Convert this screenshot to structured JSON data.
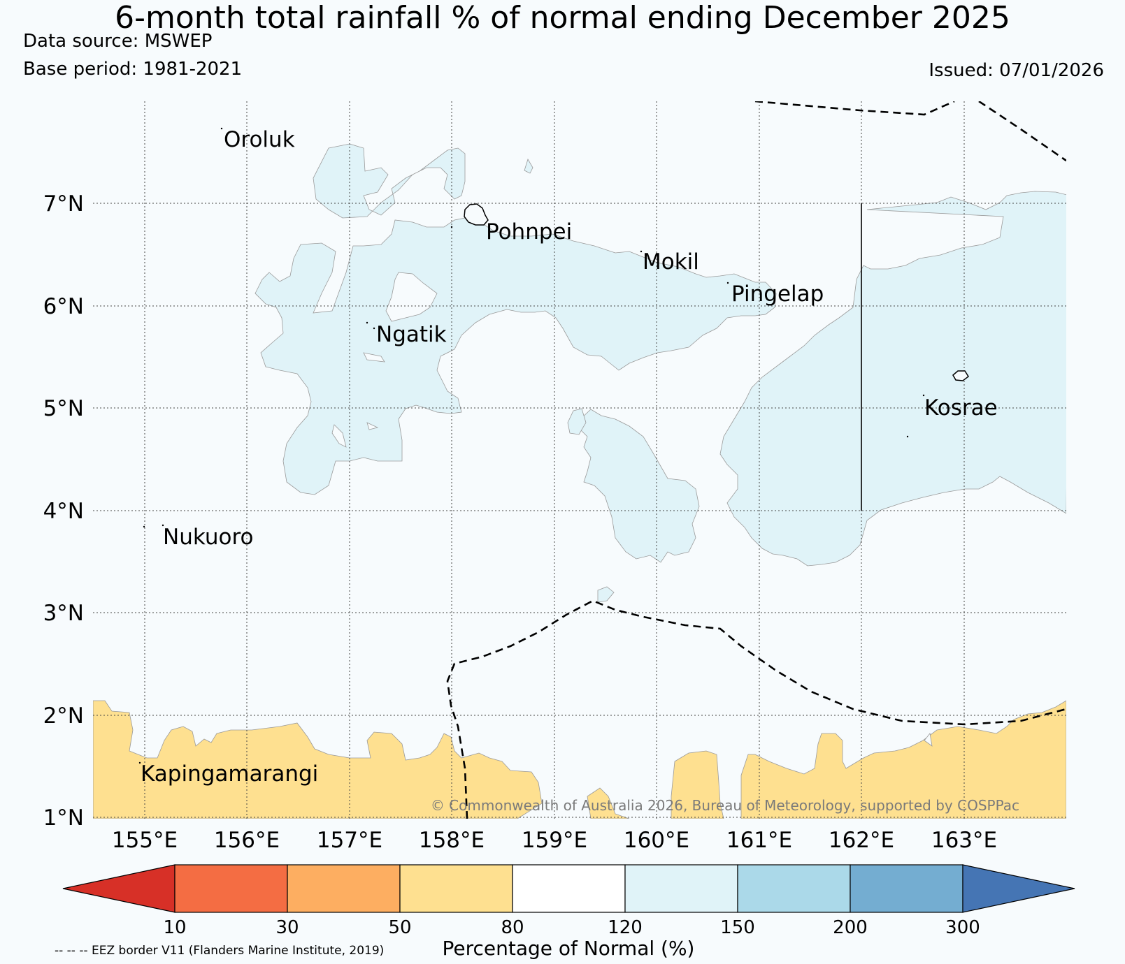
{
  "title": "6-month total rainfall % of normal ending December 2025",
  "data_source": "Data source: MSWEP",
  "base_period": "Base period: 1981-2021",
  "issued": "Issued: 07/01/2026",
  "lat_labels": [
    "7°N",
    "6°N",
    "5°N",
    "4°N",
    "3°N",
    "2°N",
    "1°N"
  ],
  "lon_labels": [
    "155°E",
    "156°E",
    "157°E",
    "158°E",
    "159°E",
    "160°E",
    "161°E",
    "162°E",
    "163°E"
  ],
  "places": {
    "oroluk": "Oroluk",
    "pohnpei": "Pohnpei",
    "mokil": "Mokil",
    "pingelap": "Pingelap",
    "ngatik": "Ngatik",
    "kosrae": "Kosrae",
    "nukuoro": "Nukuoro",
    "kapingamarangi": "Kapingamarangi"
  },
  "copyright": "© Commonwealth of Australia 2026, Bureau of Meteorology, supported by COSPPac",
  "colorbar": {
    "label": "Percentage of Normal (%)",
    "ticks": [
      "10",
      "30",
      "50",
      "80",
      "120",
      "150",
      "200",
      "300"
    ],
    "colors": {
      "under": "#d73027",
      "b10_30": "#f46d43",
      "b30_50": "#fdae61",
      "b50_80": "#fee090",
      "b80_120": "#ffffff",
      "b120_150": "#e0f3f8",
      "b150_200": "#abd9e9",
      "b200_300": "#74add1",
      "over": "#4575b4"
    }
  },
  "eez_note": "-- -- -- EEZ border V11 (Flanders Marine Institute, 2019)"
}
